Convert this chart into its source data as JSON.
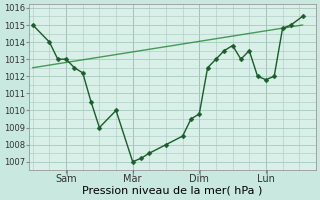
{
  "xlabel": "Pression niveau de la mer( hPa )",
  "bg_color": "#c8e8e0",
  "plot_bg_color": "#d8f0e8",
  "grid_color": "#a8c8c0",
  "line_color": "#1a5c2a",
  "trend_color": "#2d8a3e",
  "xtick_labels": [
    "Sam",
    "Mar",
    "Dim",
    "Lun"
  ],
  "xtick_positions": [
    1,
    3,
    5,
    7
  ],
  "ytick_min": 1007,
  "ytick_max": 1016,
  "ylim": [
    1006.5,
    1016.2
  ],
  "xlim": [
    -0.1,
    8.3
  ],
  "data_x": [
    0.0,
    0.5,
    0.75,
    1.0,
    1.25,
    1.5,
    1.75,
    2.0,
    2.5,
    3.0,
    3.25,
    3.5,
    4.0,
    4.5,
    4.75,
    5.0,
    5.25,
    5.5,
    5.75,
    6.0,
    6.25,
    6.5,
    6.75,
    7.0,
    7.25,
    7.5,
    7.75,
    8.1
  ],
  "data_y": [
    1015.0,
    1014.0,
    1013.0,
    1013.0,
    1012.5,
    1012.2,
    1010.5,
    1009.0,
    1010.0,
    1007.0,
    1007.2,
    1007.5,
    1008.0,
    1008.5,
    1009.5,
    1009.8,
    1012.5,
    1013.0,
    1013.5,
    1013.8,
    1013.0,
    1013.5,
    1012.0,
    1011.8,
    1012.0,
    1014.8,
    1015.0,
    1015.5
  ],
  "trend_x": [
    0.0,
    8.1
  ],
  "trend_y": [
    1012.5,
    1015.0
  ],
  "fontsize_xlabel": 8,
  "tick_fontsize": 6,
  "line_width": 1.0,
  "marker_size": 2.5,
  "vline_positions": [
    1,
    3,
    5,
    7
  ]
}
